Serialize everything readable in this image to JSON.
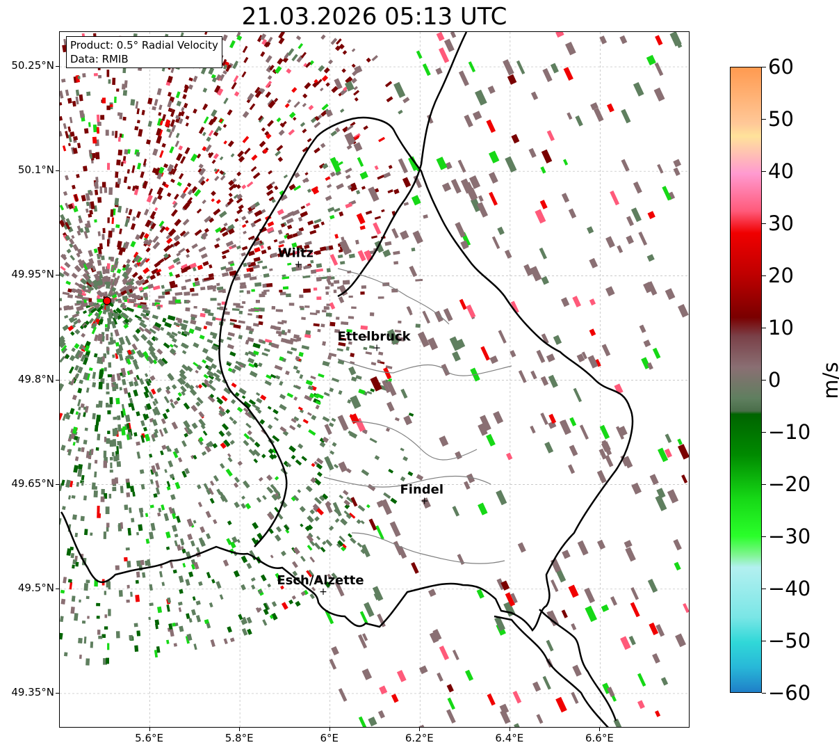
{
  "title": "21.03.2026 05:13 UTC",
  "info": {
    "product": "Product: 0.5° Radial Velocity",
    "data": "Data: RMIB"
  },
  "axes": {
    "lat_ticks": [
      "50.25°N",
      "50.1°N",
      "49.95°N",
      "49.8°N",
      "49.65°N",
      "49.5°N",
      "49.35°N"
    ],
    "lon_ticks": [
      "5.6°E",
      "5.8°E",
      "6°E",
      "6.2°E",
      "6.4°E",
      "6.6°E"
    ],
    "lat_values": [
      50.25,
      50.1,
      49.95,
      49.8,
      49.65,
      49.5,
      49.35
    ],
    "lon_values": [
      5.6,
      5.8,
      6.0,
      6.2,
      6.4,
      6.6
    ],
    "lon_range": [
      5.4,
      6.8
    ],
    "lat_range": [
      49.3,
      50.3
    ]
  },
  "places": [
    {
      "name": "Wiltz",
      "lon": 5.93,
      "lat": 49.967
    },
    {
      "name": "Ettelbruck",
      "lon": 6.104,
      "lat": 49.847
    },
    {
      "name": "Findel",
      "lon": 6.21,
      "lat": 49.627
    },
    {
      "name": "Esch/Alzette",
      "lon": 5.985,
      "lat": 49.497
    }
  ],
  "radar_site": {
    "lon": 5.505,
    "lat": 49.914
  },
  "colorbar": {
    "ticks": [
      "60",
      "50",
      "40",
      "30",
      "20",
      "10",
      "0",
      "−10",
      "−20",
      "−30",
      "−40",
      "−50",
      "−60"
    ],
    "unit": "m/s",
    "min": -60,
    "max": 60
  },
  "colors": {
    "v_neg_far": "#1f7fc8",
    "v_neg_cyan": "#30d8d8",
    "v_neg_light": "#b3f0f0",
    "v_neg_lightgreen": "#7ef58f",
    "v_neg_green": "#16d816",
    "v_neg_dark": "#006400",
    "v_zero_neg": "#5f7f5f",
    "v_zero_pos": "#8a6f73",
    "v_pos_dark": "#7a0000",
    "v_pos_red": "#f00000",
    "v_pos_pink": "#ff5a7a",
    "v_pos_lightpink": "#ff9ad0",
    "v_pos_peach": "#ffc898",
    "v_pos_orange": "#ff9a50"
  }
}
